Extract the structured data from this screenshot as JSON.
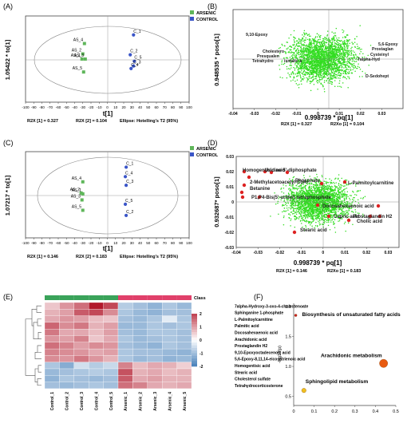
{
  "panels": [
    {
      "id": "A",
      "label": "(A)"
    },
    {
      "id": "B",
      "label": "(B)"
    },
    {
      "id": "C",
      "label": "(C)"
    },
    {
      "id": "D",
      "label": "(D)"
    },
    {
      "id": "E",
      "label": "(E)"
    },
    {
      "id": "F",
      "label": "(F)"
    }
  ],
  "colors": {
    "arsenic": "#5fb65a",
    "control": "#3a55c8",
    "loading": "#33dd22",
    "highlight": "#dd2222"
  },
  "chart_data": [
    {
      "id": "A",
      "type": "scatter",
      "xlabel": "t[1]",
      "ylabel": "1.05422 * to[1]",
      "xticks": [
        -100,
        -90,
        -80,
        -70,
        -60,
        -50,
        -40,
        -30,
        -20,
        -10,
        0,
        10,
        20,
        30,
        40,
        50,
        60,
        70,
        80,
        90,
        100
      ],
      "xlim": [
        -100,
        100
      ],
      "ylim": [
        -1,
        1
      ],
      "legend": [
        "ARSENIC",
        "CONTROL"
      ],
      "footer": [
        "R2X [1] = 0.327",
        "R2X [2] = 0.104",
        "Ellipse: Hotelling's T2 (95%)"
      ],
      "series": [
        {
          "name": "ARSENIC",
          "points": [
            {
              "label": "AS_4",
              "x": -28,
              "y": 0.36
            },
            {
              "label": "AS_2",
              "x": -30,
              "y": 0.12
            },
            {
              "label": "AS_1",
              "x": -31,
              "y": 0.0
            },
            {
              "label": "AS_3",
              "x": -27,
              "y": 0.0
            },
            {
              "label": "AS_5",
              "x": -29,
              "y": -0.3
            }
          ]
        },
        {
          "name": "CONTROL",
          "points": [
            {
              "label": "C_1",
              "x": 32,
              "y": 0.56
            },
            {
              "label": "C_2",
              "x": 28,
              "y": 0.1
            },
            {
              "label": "C_5",
              "x": 33,
              "y": -0.05
            },
            {
              "label": "C_3",
              "x": 32,
              "y": -0.16
            },
            {
              "label": "C_4",
              "x": 29,
              "y": -0.22
            }
          ]
        }
      ]
    },
    {
      "id": "B",
      "type": "scatter",
      "xlabel": "0.998739 * pq[1]",
      "ylabel": "0.948535 * poso[1]",
      "xticks": [
        "-0.04",
        "-0.03",
        "-0.02",
        "-0.01",
        "0",
        "0.01",
        "0.02",
        "0.03"
      ],
      "xlim": [
        -0.04,
        0.04
      ],
      "footer": [
        "R2X [1] = 0.327",
        "R2Xo [1] = 0.104"
      ],
      "annotations": [
        "9,10-Epoxy",
        "Cholestero",
        "Presqualen",
        "Tetrahydro",
        "ismatic a",
        "5,6-Epoxy",
        "Prostaglan",
        "Cysteinyl",
        "7alpha-Hyd",
        "D-Sedohept"
      ]
    },
    {
      "id": "C",
      "type": "scatter",
      "xlabel": "t[1]",
      "ylabel": "1.07217 * to[1]",
      "xticks": [
        -100,
        -90,
        -80,
        -70,
        -60,
        -50,
        -40,
        -30,
        -20,
        -10,
        0,
        10,
        20,
        30,
        40,
        50,
        60,
        70,
        80,
        90,
        100
      ],
      "xlim": [
        -100,
        100
      ],
      "ylim": [
        -1,
        1
      ],
      "legend": [
        "ARSENIC",
        "CONTROL"
      ],
      "footer": [
        "R2X [1] = 0.146",
        "R2X [2] = 0.183",
        "Ellipse: Hotelling's T2 (95%)"
      ],
      "series": [
        {
          "name": "ARSENIC",
          "points": [
            {
              "label": "AS_4",
              "x": -30,
              "y": 0.3
            },
            {
              "label": "AS_1",
              "x": -30,
              "y": 0.02
            },
            {
              "label": "AS_2",
              "x": -32,
              "y": 0.04
            },
            {
              "label": "AS_3",
              "x": -31,
              "y": -0.12
            },
            {
              "label": "AS_5",
              "x": -30,
              "y": -0.36
            }
          ]
        },
        {
          "name": "CONTROL",
          "points": [
            {
              "label": "C_1",
              "x": 23,
              "y": 0.64
            },
            {
              "label": "C_4",
              "x": 22,
              "y": 0.42
            },
            {
              "label": "C_3",
              "x": 23,
              "y": 0.22
            },
            {
              "label": "C_5",
              "x": 22,
              "y": -0.22
            },
            {
              "label": "C_2",
              "x": 23,
              "y": -0.48
            }
          ]
        }
      ]
    },
    {
      "id": "D",
      "type": "scatter",
      "xlabel": "0.998739 * pq[1]",
      "ylabel": "0.932687* poso[1]",
      "xticks": [
        "-0.04",
        "-0.03",
        "-0.02",
        "-0.01",
        "0",
        "0.01",
        "0.02",
        "0.03"
      ],
      "yticks": [
        "0.03",
        "0.02",
        "0.01",
        "0",
        "-0.01",
        "-0.02",
        "-0.03"
      ],
      "xlim": [
        -0.04,
        0.035
      ],
      "ylim": [
        -0.03,
        0.03
      ],
      "footer": [
        "R2X [1] = 0.146",
        "R2Xo [1] = 0.183"
      ],
      "annotations": [
        "Homogentisic acid",
        "Uridine 5'-diphosphate",
        "2-Methylacetoacetyl-CoA",
        "Betanine",
        "Phosphate",
        "P1,P4-Bis(5'-uridyl) tetraphosphate",
        "L-Palmitoylcarnitine",
        "Docosahexaenoic acid",
        "Capric acid",
        "Prostaglandin H2",
        "Cholic acid",
        "Stearic acid"
      ]
    },
    {
      "id": "E",
      "type": "heatmap",
      "class_label": "Class",
      "columns": [
        "Control_1",
        "Control_2",
        "Control_3",
        "Control_4",
        "Control_5",
        "Arsenic_1",
        "Arsenic_2",
        "Arsenic_3",
        "Arsenic_4",
        "Arsenic_5"
      ],
      "rows": [
        "7alpha-Hydroxy-3-oxo-4-cholestenoate",
        "Sphinganine 1-phosphate",
        "L-Palmitoylcarnitine",
        "Palmitic acid",
        "Docosahexaenoic acid",
        "Arachidonic acid",
        "Prostaglandin H2",
        "9,10-Epoxyoctadecenoic acid",
        "5,6-Epoxy-8,11,14-eicosatrienoic acid",
        "Homogentisic acid",
        "Stearic acid",
        "Cholesterol sulfate",
        "Tetrahydrocorticosterone"
      ],
      "values": [
        [
          0.6,
          1.1,
          1.5,
          2.4,
          1.9,
          -0.8,
          -1.0,
          -1.2,
          -0.9,
          -1.1
        ],
        [
          0.8,
          1.0,
          1.7,
          1.9,
          1.2,
          -0.9,
          -1.1,
          -1.2,
          -1.0,
          -1.0
        ],
        [
          0.9,
          1.1,
          1.0,
          0.7,
          0.6,
          -1.0,
          -1.1,
          -0.9,
          -0.3,
          -0.9
        ],
        [
          1.6,
          1.2,
          1.4,
          0.8,
          1.0,
          -1.1,
          -1.1,
          -0.9,
          -1.0,
          -0.9
        ],
        [
          1.4,
          0.9,
          0.9,
          0.7,
          1.0,
          -1.0,
          -1.1,
          -0.9,
          -0.9,
          -1.0
        ],
        [
          1.1,
          1.0,
          1.3,
          0.6,
          0.9,
          -0.9,
          -1.1,
          -1.0,
          -0.9,
          -1.0
        ],
        [
          1.5,
          1.3,
          1.0,
          1.2,
          1.1,
          -1.0,
          -1.1,
          -1.2,
          -0.9,
          -1.0
        ],
        [
          1.3,
          1.2,
          1.1,
          0.9,
          1.0,
          -0.9,
          -1.0,
          -1.0,
          -1.1,
          -1.2
        ],
        [
          1.2,
          1.1,
          1.4,
          1.1,
          0.8,
          -0.9,
          -1.1,
          -1.0,
          -1.2,
          -1.1
        ],
        [
          -0.9,
          -1.3,
          -0.5,
          -0.8,
          -0.6,
          1.3,
          0.7,
          0.9,
          0.8,
          0.5
        ],
        [
          -1.1,
          -1.0,
          -0.9,
          -0.8,
          -0.9,
          1.8,
          0.8,
          0.9,
          0.7,
          0.8
        ],
        [
          -1.2,
          -0.9,
          -1.0,
          -1.1,
          -1.0,
          1.7,
          0.9,
          1.0,
          0.8,
          0.8
        ],
        [
          -1.0,
          -1.1,
          -1.0,
          -0.9,
          -1.0,
          1.5,
          1.3,
          0.9,
          0.8,
          0.9
        ]
      ],
      "scale": {
        "ticks": [
          "2",
          "1",
          "0",
          "-1",
          "-2"
        ],
        "min": -2,
        "max": 2
      }
    },
    {
      "id": "F",
      "type": "scatter",
      "ylabel": "-log10(p)",
      "xticks": [
        "0",
        "0.1",
        "0.2",
        "0.3",
        "0.4",
        "0.5"
      ],
      "yticks": [
        "2.0",
        "1.5",
        "1.0",
        "0.5"
      ],
      "xlim": [
        0,
        0.5
      ],
      "ylim": [
        0.35,
        2.05
      ],
      "points": [
        {
          "label": "Biosynthesis of unsaturated fatty acids",
          "x": 0.01,
          "y": 1.85,
          "color": "#cc2222"
        },
        {
          "label": "Arachidonic metabolism",
          "x": 0.44,
          "y": 1.05,
          "color": "#e85a10"
        },
        {
          "label": "Sphingolipid metabolism",
          "x": 0.05,
          "y": 0.6,
          "color": "#f0c020"
        }
      ]
    }
  ]
}
